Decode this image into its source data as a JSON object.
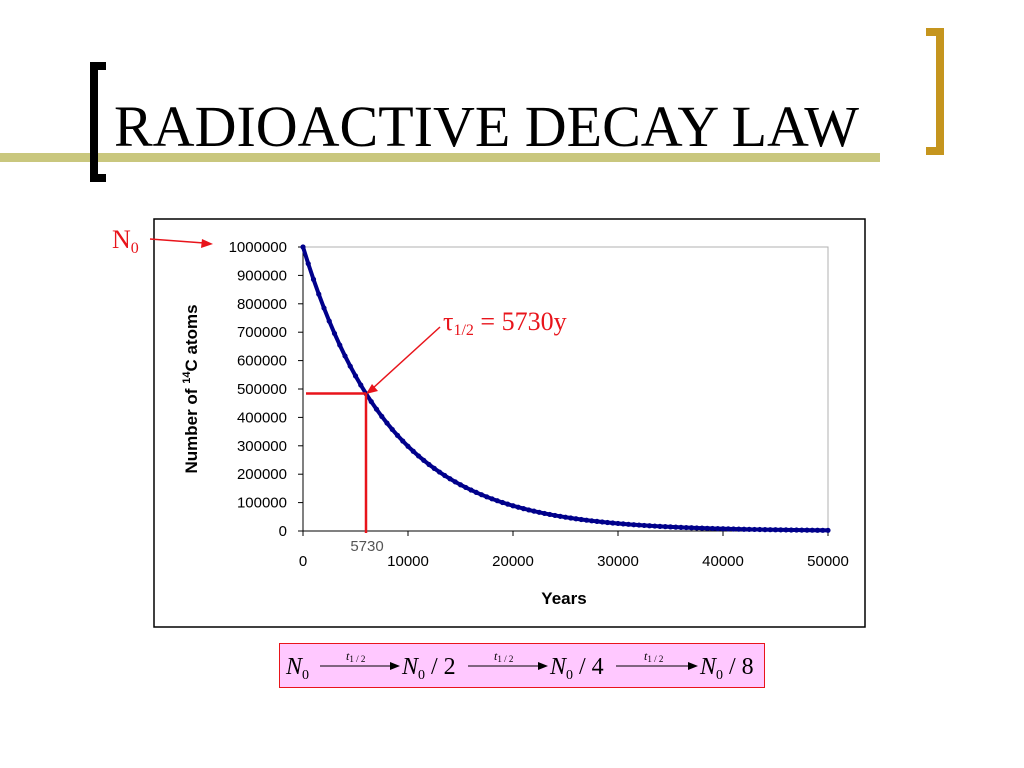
{
  "slide": {
    "title": "RADIOACTIVE DECAY LAW",
    "accent_line_color": "#c9c77e",
    "left_bracket_color": "#000000",
    "right_bracket_color": "#c5951e"
  },
  "annotations": {
    "n0_label": "N",
    "n0_sub": "0",
    "tau_symbol": "τ",
    "tau_sub": "1/2",
    "tau_value": " = 5730y",
    "half_life_tick": "5730",
    "annotation_color": "#e8141b"
  },
  "formula": {
    "n0": "N",
    "sub0": "0",
    "over2": "/ 2",
    "over4": "/ 4",
    "over8": "/ 8",
    "arrow_t": "t",
    "arrow_sub": "1 / 2",
    "box_color": "#ffc8ff"
  },
  "chart_data": {
    "type": "scatter",
    "xlabel": "Years",
    "ylabel_prefix": "Number of ",
    "ylabel_sup": "14",
    "ylabel_suffix": "C atoms",
    "xlim": [
      0,
      50000
    ],
    "ylim": [
      0,
      1000000
    ],
    "x_ticks": [
      "0",
      "10000",
      "20000",
      "30000",
      "40000",
      "50000"
    ],
    "y_ticks": [
      "0",
      "100000",
      "200000",
      "300000",
      "400000",
      "500000",
      "600000",
      "700000",
      "800000",
      "900000",
      "1000000"
    ],
    "grid": false,
    "series_color": "#00008b",
    "N0": 1000000,
    "half_life": 5730,
    "x_step": 500,
    "x": [
      0,
      5730,
      10000,
      20000,
      30000,
      40000,
      50000
    ],
    "y": [
      1000000,
      500000,
      298000,
      89000,
      27000,
      8000,
      2400
    ]
  }
}
